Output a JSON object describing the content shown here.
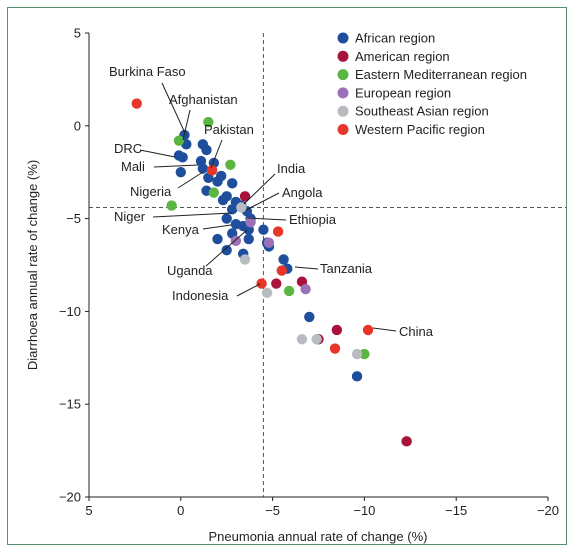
{
  "chart_data": {
    "type": "scatter",
    "xlabel": "Pneumonia annual rate of change (%)",
    "ylabel": "Diarrhoea annual rate of change (%)",
    "xlim": [
      5,
      -20
    ],
    "ylim": [
      -20,
      5
    ],
    "x_ticks": [
      "5",
      "0",
      "−5",
      "−10",
      "−15",
      "−20"
    ],
    "y_ticks": [
      "5",
      "0",
      "−5",
      "−10",
      "−15",
      "−20"
    ],
    "reference_lines": {
      "x": -4.5,
      "y": -4.4,
      "style": "dashed"
    },
    "grid": false,
    "legend_position": "top-right",
    "series": [
      {
        "name": "African region",
        "color": "#1f4e9c",
        "points": [
          [
            -0.2,
            -0.5
          ],
          [
            -0.3,
            -1.0
          ],
          [
            -1.2,
            -1.0
          ],
          [
            -1.4,
            -1.3
          ],
          [
            0.1,
            -1.6
          ],
          [
            -0.1,
            -1.7
          ],
          [
            -1.1,
            -1.9
          ],
          [
            -1.8,
            -2.0
          ],
          [
            -1.2,
            -2.3
          ],
          [
            -1.7,
            -2.4
          ],
          [
            -2.2,
            -2.7
          ],
          [
            0.0,
            -2.5
          ],
          [
            -1.5,
            -2.8
          ],
          [
            -2.0,
            -3.0
          ],
          [
            -2.8,
            -3.1
          ],
          [
            -1.4,
            -3.5
          ],
          [
            -2.5,
            -3.8
          ],
          [
            -2.3,
            -4.0
          ],
          [
            -3.0,
            -4.1
          ],
          [
            -3.3,
            -4.3
          ],
          [
            -2.8,
            -4.5
          ],
          [
            -3.6,
            -4.6
          ],
          [
            -2.5,
            -5.0
          ],
          [
            -3.8,
            -5.0
          ],
          [
            -3.0,
            -5.3
          ],
          [
            -3.4,
            -5.4
          ],
          [
            -3.7,
            -5.6
          ],
          [
            -2.8,
            -5.8
          ],
          [
            -4.5,
            -5.6
          ],
          [
            -2.0,
            -6.1
          ],
          [
            -3.7,
            -6.1
          ],
          [
            -4.7,
            -6.3
          ],
          [
            -4.8,
            -6.5
          ],
          [
            -2.5,
            -6.7
          ],
          [
            -3.4,
            -6.9
          ],
          [
            -5.6,
            -7.2
          ],
          [
            -5.8,
            -7.7
          ],
          [
            -7.0,
            -10.3
          ],
          [
            -9.6,
            -13.5
          ]
        ]
      },
      {
        "name": "American region",
        "color": "#a8133c",
        "points": [
          [
            -3.5,
            -3.8
          ],
          [
            -5.2,
            -8.5
          ],
          [
            -6.6,
            -8.4
          ],
          [
            -7.5,
            -11.5
          ],
          [
            -8.5,
            -11.0
          ],
          [
            -12.3,
            -17.0
          ]
        ]
      },
      {
        "name": "Eastern Mediterranean region",
        "color": "#5bb543",
        "points": [
          [
            -1.5,
            0.2
          ],
          [
            0.1,
            -0.8
          ],
          [
            -2.7,
            -2.1
          ],
          [
            -1.8,
            -3.6
          ],
          [
            0.5,
            -4.3
          ],
          [
            -5.9,
            -8.9
          ],
          [
            -10.0,
            -12.3
          ]
        ]
      },
      {
        "name": "European region",
        "color": "#9b72b8",
        "points": [
          [
            -3.0,
            -6.2
          ],
          [
            -4.8,
            -6.3
          ],
          [
            -6.8,
            -8.8
          ],
          [
            -3.8,
            -5.2
          ]
        ]
      },
      {
        "name": "Southeast Asian region",
        "color": "#b8bcc1",
        "points": [
          [
            -3.3,
            -4.4
          ],
          [
            -3.5,
            -7.2
          ],
          [
            -4.7,
            -9.0
          ],
          [
            -6.6,
            -11.5
          ],
          [
            -7.4,
            -11.5
          ],
          [
            -9.6,
            -12.3
          ]
        ]
      },
      {
        "name": "Western Pacific region",
        "color": "#e8372a",
        "points": [
          [
            2.4,
            1.2
          ],
          [
            -1.7,
            -2.4
          ],
          [
            -5.3,
            -5.7
          ],
          [
            -4.4,
            -8.5
          ],
          [
            -5.5,
            -7.8
          ],
          [
            -8.4,
            -12.0
          ],
          [
            -10.2,
            -11.0
          ]
        ]
      }
    ],
    "annotations": [
      {
        "text": "Burkina Faso",
        "target": [
          -0.2,
          -0.5
        ]
      },
      {
        "text": "Afghanistan",
        "target": [
          0.1,
          -0.8
        ]
      },
      {
        "text": "Pakistan",
        "target": [
          -1.7,
          -2.4
        ]
      },
      {
        "text": "DRC",
        "target": [
          0.1,
          -1.6
        ]
      },
      {
        "text": "Mali",
        "target": [
          -1.4,
          -2.1
        ]
      },
      {
        "text": "Nigeria",
        "target": [
          -1.0,
          -2.3
        ]
      },
      {
        "text": "India",
        "target": [
          -3.3,
          -4.4
        ]
      },
      {
        "text": "Angola",
        "target": [
          -3.3,
          -4.6
        ]
      },
      {
        "text": "Niger",
        "target": [
          -2.8,
          -4.8
        ]
      },
      {
        "text": "Ethiopia",
        "target": [
          -3.6,
          -4.9
        ]
      },
      {
        "text": "Kenya",
        "target": [
          -2.8,
          -5.5
        ]
      },
      {
        "text": "Uganda",
        "target": [
          -3.6,
          -6.0
        ]
      },
      {
        "text": "Tanzania",
        "target": [
          -5.7,
          -7.7
        ]
      },
      {
        "text": "Indonesia",
        "target": [
          -4.4,
          -8.5
        ]
      },
      {
        "text": "China",
        "target": [
          -10.2,
          -11.0
        ]
      }
    ]
  }
}
